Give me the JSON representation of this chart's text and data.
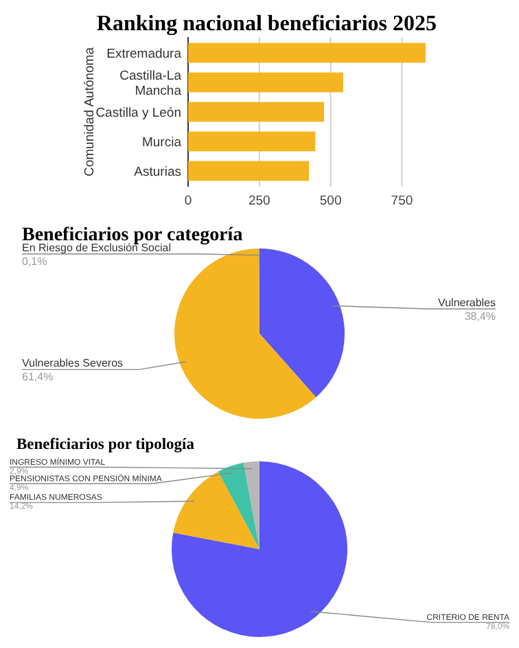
{
  "chart_data": [
    {
      "type": "bar",
      "title": "Ranking nacional beneficiarios 2025",
      "ylabel": "Comunidad Autónoma",
      "orientation": "horizontal",
      "categories": [
        "Extremadura",
        "Castilla-La Mancha",
        "Castilla y León",
        "Murcia",
        "Asturias"
      ],
      "values": [
        833,
        544,
        477,
        446,
        424
      ],
      "color": "#f5b520",
      "xlim": [
        0,
        840
      ],
      "xticks": [
        0,
        250,
        500,
        750
      ],
      "grid": "x"
    },
    {
      "type": "pie",
      "title": "Beneficiarios por categoría",
      "categories": [
        "Vulnerables",
        "Vulnerables Severos",
        "En Riesgo de Exclusión Social"
      ],
      "values": [
        38.4,
        61.4,
        0.1
      ],
      "colors": [
        "#5b55f6",
        "#f5b520",
        "#3fc2a6"
      ],
      "value_labels": [
        "38,4%",
        "61,4%",
        "0,1%"
      ]
    },
    {
      "type": "pie",
      "title": "Beneficiarios por tipología",
      "categories": [
        "CRITERIO DE RENTA",
        "FAMILIAS NUMEROSAS",
        "PENSIONISTAS CON PENSIÓN MÍNIMA",
        "INGRESO MÍNIMO VITAL"
      ],
      "values": [
        78.0,
        14.2,
        4.9,
        2.9
      ],
      "colors": [
        "#5b55f6",
        "#f5b520",
        "#3fc2a6",
        "#b8b8b8"
      ],
      "value_labels": [
        "78,0%",
        "14,2%",
        "4,9%",
        "2,9%"
      ]
    }
  ]
}
